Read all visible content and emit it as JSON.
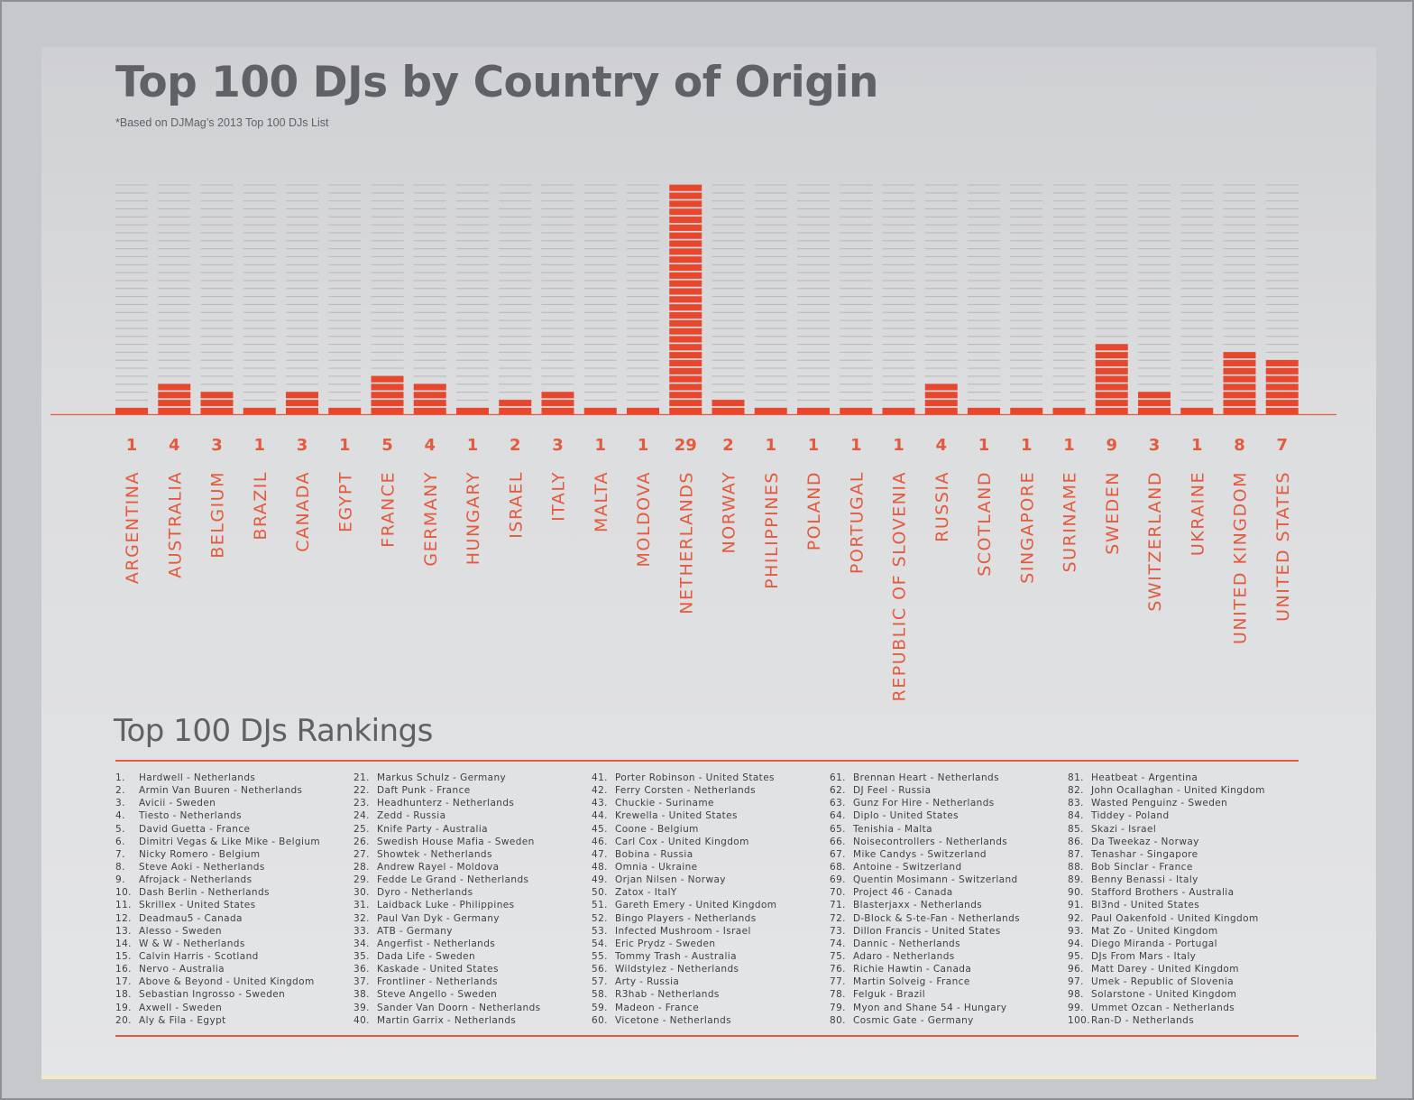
{
  "title": "Top 100 DJs by Country of Origin",
  "subtitle": "*Based on DJMag’s 2013 Top 100 DJs List",
  "colors": {
    "bar": "#e8472e",
    "label": "#e35a3e",
    "grid": "#b9babd",
    "text": "#606166"
  },
  "chart_data": {
    "type": "bar",
    "title": "Top 100 DJs by Country of Origin",
    "xlabel": "",
    "ylabel": "",
    "ylim": [
      0,
      29
    ],
    "grid": true,
    "categories": [
      "ARGENTINA",
      "AUSTRALIA",
      "BELGIUM",
      "BRAZIL",
      "CANADA",
      "EGYPT",
      "FRANCE",
      "GERMANY",
      "HUNGARY",
      "ISRAEL",
      "ITALY",
      "MALTA",
      "MOLDOVA",
      "NETHERLANDS",
      "NORWAY",
      "PHILIPPINES",
      "POLAND",
      "PORTUGAL",
      "REPUBLIC OF SLOVENIA",
      "RUSSIA",
      "SCOTLAND",
      "SINGAPORE",
      "SURINAME",
      "SWEDEN",
      "SWITZERLAND",
      "UKRAINE",
      "UNITED KINGDOM",
      "UNITED STATES"
    ],
    "values": [
      1,
      4,
      3,
      1,
      3,
      1,
      5,
      4,
      1,
      2,
      3,
      1,
      1,
      29,
      2,
      1,
      1,
      1,
      1,
      4,
      1,
      1,
      1,
      9,
      3,
      1,
      8,
      7
    ]
  },
  "rankings_title": "Top 100 DJs Rankings",
  "rankings": [
    "Hardwell - Netherlands",
    "Armin Van Buuren - Netherlands",
    "Avicii - Sweden",
    "Tiesto - Netherlands",
    "David Guetta - France",
    "Dimitri Vegas & Like Mike - Belgium",
    "Nicky Romero - Belgium",
    "Steve Aoki - Netherlands",
    "Afrojack - Netherlands",
    "Dash Berlin - Netherlands",
    "Skrillex - United States",
    "Deadmau5 - Canada",
    "Alesso - Sweden",
    "W & W - Netherlands",
    "Calvin Harris - Scotland",
    "Nervo - Australia",
    "Above & Beyond - United Kingdom",
    "Sebastian Ingrosso - Sweden",
    "Axwell - Sweden",
    "Aly & Fila - Egypt",
    "Markus Schulz - Germany",
    "Daft Punk - France",
    "Headhunterz - Netherlands",
    "Zedd - Russia",
    "Knife Party - Australia",
    "Swedish House Mafia - Sweden",
    "Showtek - Netherlands",
    "Andrew Rayel - Moldova",
    "Fedde Le Grand - Netherlands",
    "Dyro - Netherlands",
    "Laidback Luke - Philippines",
    "Paul Van Dyk - Germany",
    "ATB - Germany",
    "Angerfist - Netherlands",
    "Dada Life - Sweden",
    "Kaskade - United States",
    "Frontliner - Netherlands",
    "Steve Angello - Sweden",
    "Sander Van Doorn - Netherlands",
    "Martin Garrix - Netherlands",
    "Porter Robinson - United States",
    "Ferry Corsten - Netherlands",
    "Chuckie - Suriname",
    "Krewella - United States",
    "Coone - Belgium",
    "Carl Cox - United Kingdom",
    "Bobina - Russia",
    "Omnia - Ukraine",
    "Orjan Nilsen - Norway",
    "Zatox - ItalY",
    "Gareth Emery - United Kingdom",
    "Bingo Players - Netherlands",
    "Infected Mushroom - Israel",
    "Eric Prydz - Sweden",
    "Tommy Trash - Australia",
    "Wildstylez - Netherlands",
    "Arty - Russia",
    "R3hab - Netherlands",
    "Madeon - France",
    "Vicetone - Netherlands",
    "Brennan Heart - Netherlands",
    "DJ Feel - Russia",
    "Gunz For Hire - Netherlands",
    "Diplo - United States",
    "Tenishia - Malta",
    "Noisecontrollers - Netherlands",
    "Mike Candys - Switzerland",
    "Antoine - Switzerland",
    "Quentin Mosimann - Switzerland",
    "Project 46 - Canada",
    "Blasterjaxx - Netherlands",
    "D-Block & S-te-Fan - Netherlands",
    "Dillon Francis - United States",
    "Dannic - Netherlands",
    "Adaro - Netherlands",
    "Richie Hawtin - Canada",
    "Martin Solveig - France",
    "Felguk - Brazil",
    "Myon and Shane 54 - Hungary",
    "Cosmic Gate - Germany",
    "Heatbeat - Argentina",
    "John Ocallaghan - United Kingdom",
    "Wasted Penguinz - Sweden",
    "Tiddey - Poland",
    "Skazi - Israel",
    "Da Tweekaz - Norway",
    "Tenashar - Singapore",
    "Bob Sinclar - France",
    "Benny Benassi - Italy",
    "Stafford Brothers - Australia",
    "Bl3nd - United States",
    "Paul Oakenfold - United Kingdom",
    "Mat Zo - United Kingdom",
    "Diego Miranda - Portugal",
    "DJs From Mars - Italy",
    "Matt Darey - United Kingdom",
    "Umek - Republic of Slovenia",
    "Solarstone - United Kingdom",
    "Ummet Ozcan - Netherlands",
    "Ran-D - Netherlands"
  ]
}
